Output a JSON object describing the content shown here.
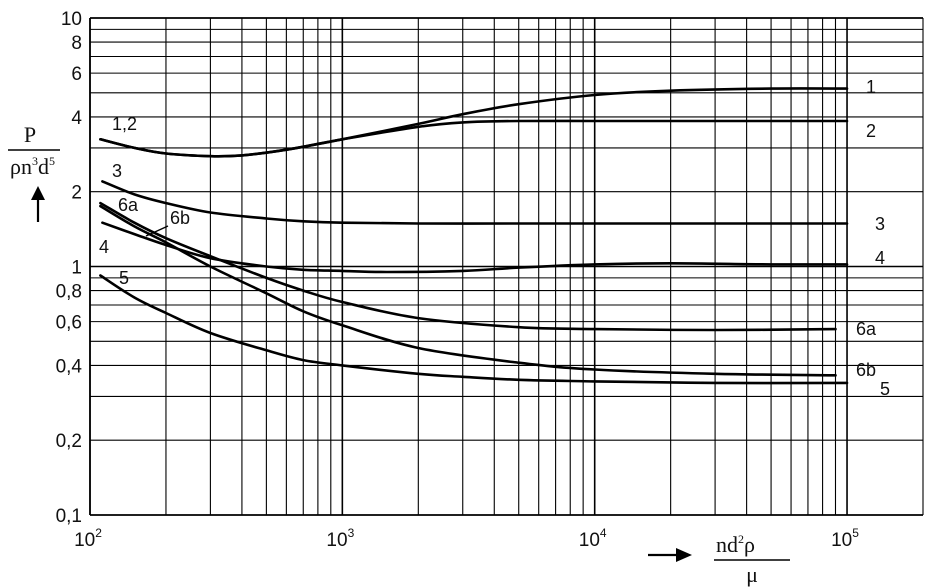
{
  "chart_data": {
    "type": "line",
    "x_scale": "log",
    "y_scale": "log",
    "xlim": [
      100,
      200000
    ],
    "ylim": [
      0.1,
      10
    ],
    "grid": true,
    "x_tick_labels": [
      {
        "value": 100,
        "base": "10",
        "exp": "2"
      },
      {
        "value": 1000,
        "base": "10",
        "exp": "3"
      },
      {
        "value": 10000,
        "base": "10",
        "exp": "4"
      },
      {
        "value": 100000,
        "base": "10",
        "exp": "5"
      }
    ],
    "y_tick_labels": [
      {
        "value": 10,
        "text": "10"
      },
      {
        "value": 8,
        "text": "8"
      },
      {
        "value": 6,
        "text": "6"
      },
      {
        "value": 4,
        "text": "4"
      },
      {
        "value": 2,
        "text": "2"
      },
      {
        "value": 1,
        "text": "1"
      },
      {
        "value": 0.8,
        "text": "0,8"
      },
      {
        "value": 0.6,
        "text": "0,6"
      },
      {
        "value": 0.4,
        "text": "0,4"
      },
      {
        "value": 0.2,
        "text": "0,2"
      },
      {
        "value": 0.1,
        "text": "0,1"
      }
    ],
    "ylabel": {
      "numerator": "P",
      "den_rho_n": "ρn",
      "den_exp3": "3",
      "den_d": "d",
      "den_exp5": "5"
    },
    "xlabel": {
      "num_nd": "nd",
      "num_exp2": "2",
      "num_rho": "ρ",
      "denominator": "μ"
    },
    "series": [
      {
        "name": "1",
        "label_start": "1,2",
        "label_end": "1",
        "x": [
          110,
          150,
          200,
          300,
          400,
          600,
          1000,
          2000,
          3000,
          5000,
          10000,
          20000,
          50000,
          100000
        ],
        "y": [
          3.25,
          3.0,
          2.85,
          2.78,
          2.8,
          2.95,
          3.25,
          3.75,
          4.1,
          4.5,
          4.9,
          5.1,
          5.2,
          5.2
        ]
      },
      {
        "name": "2",
        "label_end": "2",
        "x": [
          110,
          150,
          200,
          300,
          400,
          600,
          1000,
          2000,
          3000,
          5000,
          10000,
          20000,
          50000,
          100000
        ],
        "y": [
          3.25,
          3.0,
          2.85,
          2.78,
          2.8,
          2.95,
          3.25,
          3.65,
          3.8,
          3.85,
          3.85,
          3.85,
          3.85,
          3.85
        ]
      },
      {
        "name": "3",
        "label_start": "3",
        "label_end": "3",
        "x": [
          112,
          150,
          200,
          300,
          500,
          700,
          1000,
          2000,
          5000,
          10000,
          30000,
          100000
        ],
        "y": [
          2.2,
          1.95,
          1.8,
          1.65,
          1.56,
          1.52,
          1.5,
          1.49,
          1.49,
          1.49,
          1.49,
          1.49
        ]
      },
      {
        "name": "4",
        "label_start": "4",
        "label_end": "4",
        "x": [
          112,
          150,
          200,
          300,
          500,
          700,
          1000,
          1500,
          3000,
          5000,
          10000,
          20000,
          50000,
          100000
        ],
        "y": [
          1.5,
          1.35,
          1.22,
          1.08,
          1.0,
          0.97,
          0.96,
          0.95,
          0.96,
          0.99,
          1.02,
          1.03,
          1.02,
          1.02
        ]
      },
      {
        "name": "5",
        "label_start": "5",
        "label_end": "5",
        "x": [
          110,
          150,
          200,
          300,
          500,
          700,
          1000,
          2000,
          3000,
          5000,
          10000,
          30000,
          100000
        ],
        "y": [
          0.92,
          0.75,
          0.65,
          0.54,
          0.46,
          0.42,
          0.4,
          0.37,
          0.36,
          0.35,
          0.345,
          0.34,
          0.34
        ]
      },
      {
        "name": "6a",
        "label_start": "6a",
        "label_end": "6a",
        "x": [
          110,
          150,
          200,
          300,
          500,
          700,
          1000,
          2000,
          5000,
          10000,
          30000,
          90000
        ],
        "y": [
          1.8,
          1.5,
          1.3,
          1.1,
          0.9,
          0.8,
          0.72,
          0.62,
          0.57,
          0.56,
          0.555,
          0.56
        ]
      },
      {
        "name": "6b",
        "label_start": "6b",
        "label_end": "6b",
        "x": [
          110,
          150,
          200,
          300,
          500,
          700,
          1000,
          2000,
          5000,
          10000,
          30000,
          90000
        ],
        "y": [
          1.75,
          1.45,
          1.25,
          1.0,
          0.78,
          0.66,
          0.58,
          0.47,
          0.41,
          0.385,
          0.37,
          0.365
        ]
      }
    ]
  }
}
